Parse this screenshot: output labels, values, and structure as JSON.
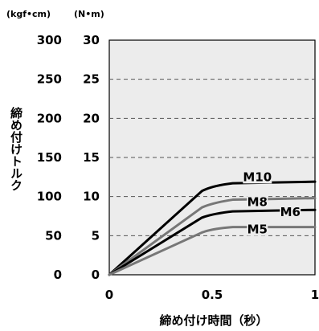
{
  "chart_data": {
    "type": "line",
    "xlabel": "締め付け時間（秒）",
    "ylabel": "締め付けトルク",
    "xlim": [
      0,
      1
    ],
    "ylim": [
      0,
      30
    ],
    "secondary_ylim": [
      0,
      300
    ],
    "xticks": [
      0,
      0.5,
      1
    ],
    "xtick_labels": [
      "0",
      "0.5",
      "1"
    ],
    "yticks": [
      0,
      5,
      10,
      15,
      20,
      25,
      30
    ],
    "ytick_labels": [
      "0",
      "5",
      "10",
      "15",
      "20",
      "25",
      "30"
    ],
    "secondary_ytick_labels": [
      "0",
      "50",
      "100",
      "150",
      "200",
      "250",
      "300"
    ],
    "y_unit_primary": "(N•m)",
    "y_unit_secondary": "(kgf•cm)",
    "grid": "horizontal dashed",
    "series": [
      {
        "name": "M10",
        "color": "#000000",
        "x": [
          0,
          0.45,
          0.5,
          0.6,
          0.8,
          1.0
        ],
        "y": [
          0,
          10.7,
          11.4,
          11.7,
          11.8,
          11.9
        ]
      },
      {
        "name": "M8",
        "color": "#777777",
        "x": [
          0,
          0.45,
          0.5,
          0.6,
          0.8,
          1.0
        ],
        "y": [
          0,
          8.6,
          9.2,
          9.6,
          9.7,
          9.8
        ]
      },
      {
        "name": "M6",
        "color": "#000000",
        "x": [
          0,
          0.45,
          0.5,
          0.6,
          0.8,
          1.0
        ],
        "y": [
          0,
          7.3,
          7.8,
          8.1,
          8.2,
          8.3
        ]
      },
      {
        "name": "M5",
        "color": "#777777",
        "x": [
          0,
          0.45,
          0.5,
          0.6,
          0.8,
          1.0
        ],
        "y": [
          0,
          5.4,
          5.9,
          6.1,
          6.1,
          6.1
        ]
      }
    ]
  }
}
